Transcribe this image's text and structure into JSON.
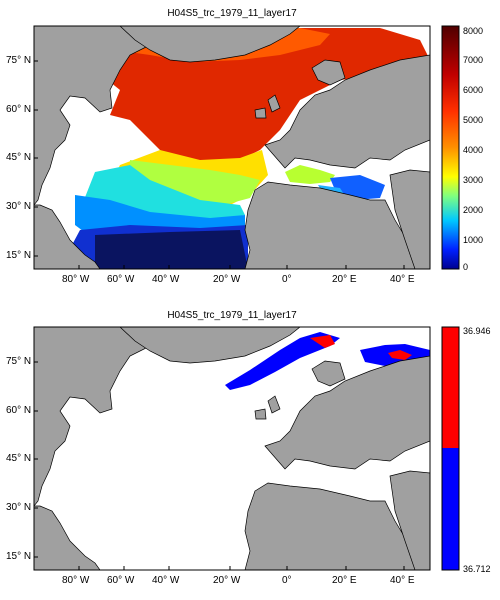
{
  "panels": [
    {
      "title": "H04S5_trc_1979_11_layer17",
      "x_ticks": [
        "80° W",
        "60° W",
        "40° W",
        "20° W",
        "0°",
        "20° E",
        "40° E"
      ],
      "y_ticks": [
        "75° N",
        "60° N",
        "45° N",
        "30° N",
        "15° N"
      ],
      "colorbar": {
        "type": "continuous",
        "labels": [
          "8000",
          "7000",
          "6000",
          "5000",
          "4000",
          "3000",
          "2000",
          "1000",
          "0"
        ],
        "min": 0,
        "max": 8000
      }
    },
    {
      "title": "H04S5_trc_1979_11_layer17",
      "x_ticks": [
        "80° W",
        "60° W",
        "40° W",
        "20° W",
        "0°",
        "20° E",
        "40° E"
      ],
      "y_ticks": [
        "75° N",
        "60° N",
        "45° N",
        "30° N",
        "15° N"
      ],
      "colorbar": {
        "type": "two-class",
        "labels": [
          "36.946",
          "36.712"
        ],
        "colors": [
          "#ff0000",
          "#0000ff"
        ]
      }
    }
  ],
  "colors": {
    "land": "#a0a0a0",
    "ocean_masked": "#ffffff",
    "deep_blue": "#0a1460",
    "red_high": "#ff0000",
    "blue_low": "#0000ff"
  }
}
